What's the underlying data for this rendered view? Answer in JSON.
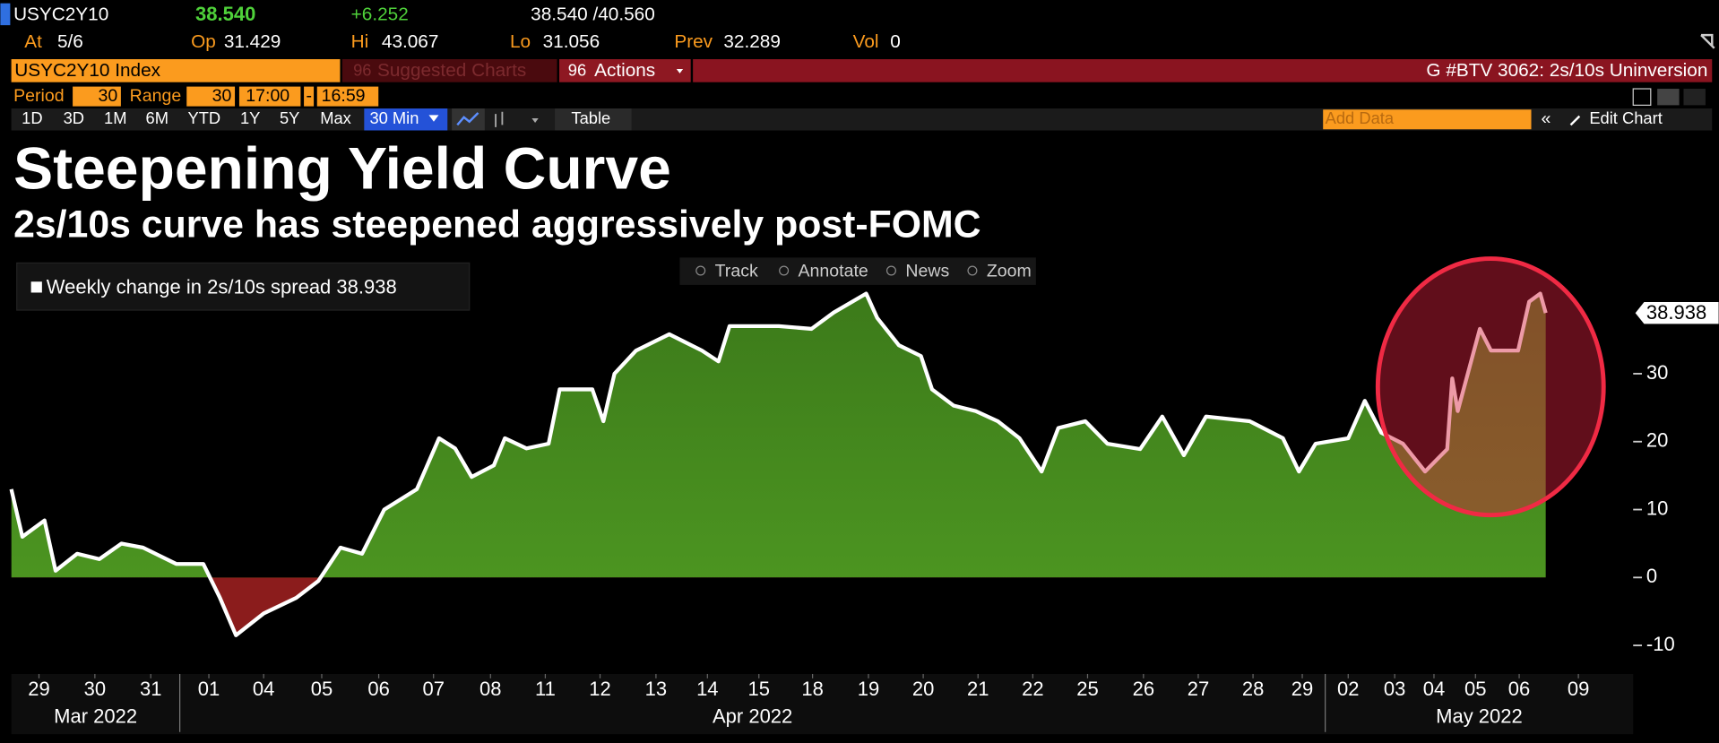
{
  "header": {
    "ticker": "USYC2Y10",
    "last": "38.540",
    "change": "+6.252",
    "bid_ask": "38.540 /40.560",
    "stats": [
      {
        "label": "At",
        "value": "5/6"
      },
      {
        "label": "Op",
        "value": "31.429"
      },
      {
        "label": "Hi",
        "value": "43.067"
      },
      {
        "label": "Lo",
        "value": "31.056"
      },
      {
        "label": "Prev",
        "value": "32.289"
      },
      {
        "label": "Vol",
        "value": "0"
      }
    ],
    "security": "USYC2Y10 Index",
    "suggested": "Suggested Charts",
    "actions": "Actions",
    "story": "G #BTV 3062: 2s/10s Uninversion"
  },
  "controls": {
    "period_label": "Period",
    "period": "30",
    "range_label": "Range",
    "range": "30",
    "start": "17:00",
    "separator": "-",
    "end": "16:59",
    "buttons": [
      "1D",
      "3D",
      "1M",
      "6M",
      "YTD",
      "1Y",
      "5Y",
      "Max"
    ],
    "interval": "30 Min",
    "table": "Table",
    "add_data": "Add Data",
    "edit_chart": "Edit Chart",
    "tools": [
      "Track",
      "Annotate",
      "News",
      "Zoom"
    ]
  },
  "chart_data": {
    "type": "area",
    "title": "Steepening Yield Curve",
    "subtitle": "2s/10s curve has steepened aggressively post-FOMC",
    "x": [
      -0.5,
      -0.3,
      0.1,
      0.3,
      0.69,
      1.09,
      1.49,
      1.88,
      2.48,
      2.97,
      3.27,
      3.56,
      4.06,
      4.65,
      5.05,
      5.45,
      5.84,
      6.24,
      6.83,
      7.23,
      7.52,
      7.82,
      8.22,
      8.42,
      8.81,
      9.21,
      9.41,
      10,
      10.2,
      10.4,
      10.79,
      11.39,
      11.98,
      12.28,
      12.48,
      13.37,
      13.96,
      14.36,
      14.95,
      15.15,
      15.54,
      15.94,
      16.14,
      16.53,
      16.93,
      17.33,
      17.72,
      18.12,
      18.42,
      18.91,
      19.31,
      19.9,
      20.3,
      20.69,
      21.09,
      21.88,
      22.48,
      22.77,
      23.07,
      23.66,
      23.96,
      24.26,
      24.65,
      25.05,
      25.45,
      25.54,
      25.64,
      26.04,
      26.24,
      26.73,
      26.93,
      27.13,
      27.23
    ],
    "series": [
      {
        "name": "Weekly change in 2s/10s spread",
        "color": "#ffffff",
        "fill": "#3c7a1a",
        "negative_fill": "#8b1c1c",
        "values": [
          13,
          6,
          8.4,
          1,
          3.5,
          2.7,
          5,
          4.4,
          2,
          2,
          -3,
          -8.5,
          -5.3,
          -3,
          -0.5,
          4.4,
          3.5,
          10,
          13,
          20.5,
          19,
          14.8,
          16.5,
          20.5,
          19,
          19.7,
          27.7,
          27.7,
          23,
          30,
          33.4,
          35.8,
          33.4,
          31.8,
          37,
          37,
          36.6,
          39,
          41.8,
          38.2,
          34.2,
          32.6,
          27.7,
          25.3,
          24.5,
          23,
          20.5,
          15.6,
          22,
          23,
          19.7,
          18.9,
          23.7,
          18,
          23.7,
          23,
          20.5,
          15.6,
          19.7,
          20.5,
          26,
          21.3,
          19.7,
          15.6,
          18.9,
          29.3,
          24.5,
          36.6,
          33.4,
          33.4,
          40.6,
          41.8,
          38.938
        ]
      }
    ],
    "xlim": [
      -0.5,
      28.81
    ],
    "xticks": [
      {
        "value": 0,
        "label": "29"
      },
      {
        "value": 1.01,
        "label": "30"
      },
      {
        "value": 2.02,
        "label": "31"
      },
      {
        "value": 3.07,
        "label": "01"
      },
      {
        "value": 4.06,
        "label": "04"
      },
      {
        "value": 5.11,
        "label": "05"
      },
      {
        "value": 6.14,
        "label": "06"
      },
      {
        "value": 7.13,
        "label": "07"
      },
      {
        "value": 8.16,
        "label": "08"
      },
      {
        "value": 9.15,
        "label": "11"
      },
      {
        "value": 10.14,
        "label": "12"
      },
      {
        "value": 11.15,
        "label": "13"
      },
      {
        "value": 12.08,
        "label": "14"
      },
      {
        "value": 13.01,
        "label": "15"
      },
      {
        "value": 13.98,
        "label": "18"
      },
      {
        "value": 14.99,
        "label": "19"
      },
      {
        "value": 15.98,
        "label": "20"
      },
      {
        "value": 16.97,
        "label": "21"
      },
      {
        "value": 17.96,
        "label": "22"
      },
      {
        "value": 18.95,
        "label": "25"
      },
      {
        "value": 19.96,
        "label": "26"
      },
      {
        "value": 20.95,
        "label": "27"
      },
      {
        "value": 21.94,
        "label": "28"
      },
      {
        "value": 22.83,
        "label": "29"
      },
      {
        "value": 23.66,
        "label": "02"
      },
      {
        "value": 24.5,
        "label": "03"
      },
      {
        "value": 25.21,
        "label": "04"
      },
      {
        "value": 25.96,
        "label": "05"
      },
      {
        "value": 26.75,
        "label": "06"
      },
      {
        "value": 27.82,
        "label": "09"
      }
    ],
    "months": [
      "Mar 2022",
      "Apr 2022",
      "May 2022"
    ],
    "ylim": [
      -14.2,
      47.1
    ],
    "yticks": [
      -10,
      0,
      10,
      20,
      30
    ],
    "grid": false
  }
}
